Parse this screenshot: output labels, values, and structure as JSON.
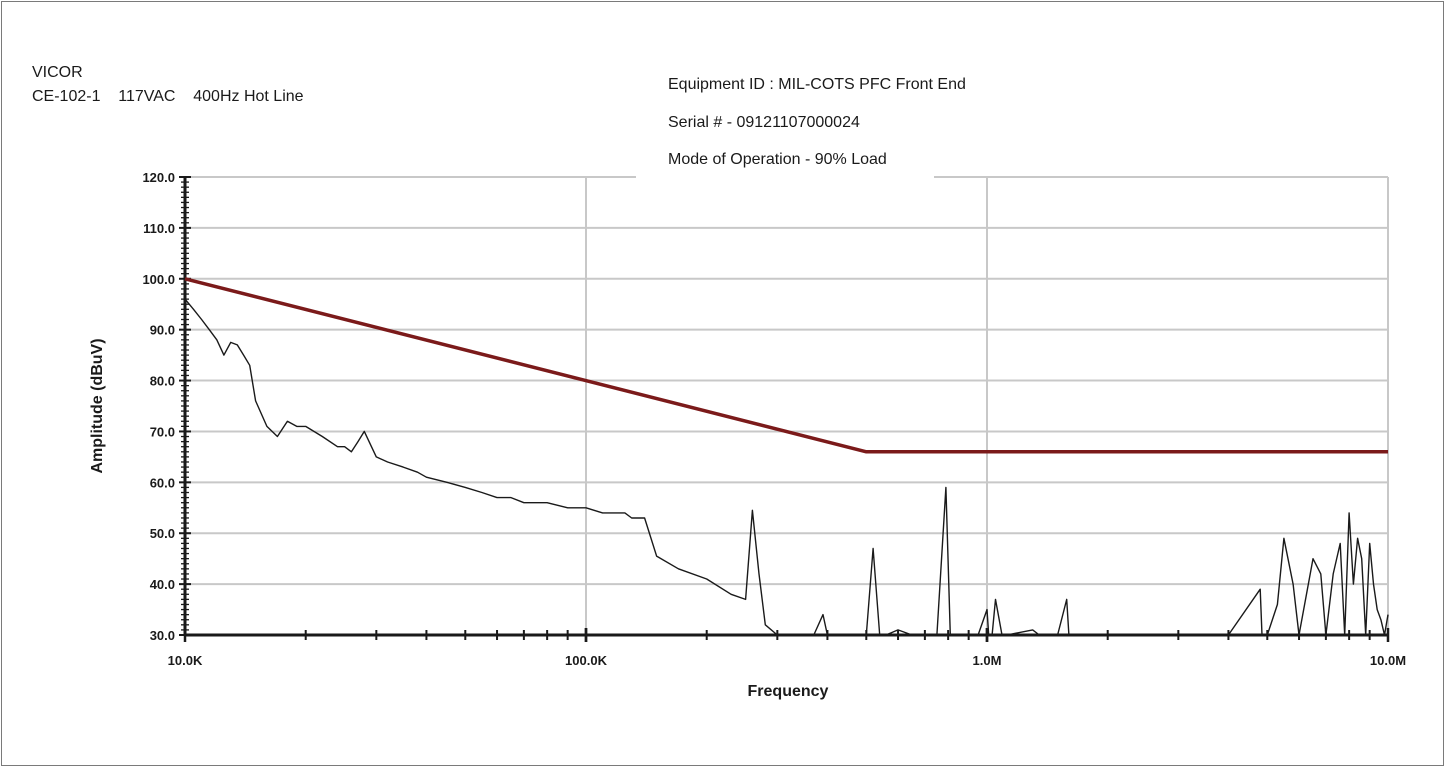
{
  "header": {
    "company": "VICOR",
    "test_line": "CE-102-1    117VAC    400Hz Hot Line",
    "equipment": "Equipment ID : MIL-COTS PFC Front End",
    "serial": "Serial # - 09121107000024",
    "mode": "Mode of Operation - 90% Load"
  },
  "chart_data": {
    "type": "line",
    "title": "",
    "xlabel": "Frequency",
    "ylabel": "Amplitude (dBuV)",
    "x_scale": "log",
    "xlim": [
      10000,
      10000000
    ],
    "ylim": [
      30,
      120
    ],
    "grid": true,
    "x_ticks": [
      10000,
      100000,
      1000000,
      10000000
    ],
    "x_tick_labels": [
      "10.0K",
      "100.0K",
      "1.0M",
      "10.0M"
    ],
    "y_ticks": [
      30,
      40,
      50,
      60,
      70,
      80,
      90,
      100,
      110,
      120
    ],
    "y_tick_labels": [
      "30.0",
      "40.0",
      "50.0",
      "60.0",
      "70.0",
      "80.0",
      "90.0",
      "100.0",
      "110.0",
      "120.0"
    ],
    "colors": {
      "limit": "#7b1a1a",
      "measurement": "#1a1a1a",
      "grid": "#c8c8c8"
    },
    "series": [
      {
        "role": "limit",
        "x": [
          10000,
          500000,
          10000000
        ],
        "y": [
          100,
          66,
          66
        ]
      },
      {
        "role": "measurement",
        "x": [
          10000,
          10500,
          11000,
          11500,
          12000,
          12500,
          13000,
          13500,
          14000,
          14500,
          15000,
          16000,
          17000,
          18000,
          19000,
          20000,
          22000,
          24000,
          25000,
          26000,
          27000,
          28000,
          30000,
          32000,
          35000,
          38000,
          40000,
          45000,
          50000,
          55000,
          60000,
          65000,
          70000,
          80000,
          90000,
          100000,
          110000,
          120000,
          125000,
          130000,
          140000,
          150000,
          170000,
          200000,
          230000,
          250000,
          260000,
          270000,
          280000,
          300000,
          330000,
          350000,
          370000,
          390000,
          400000,
          410000,
          420000,
          450000,
          500000,
          520000,
          540000,
          560000,
          600000,
          650000,
          700000,
          750000,
          790000,
          810000,
          830000,
          870000,
          950000,
          1000000,
          1010000,
          1030000,
          1050000,
          1090000,
          1100000,
          1120000,
          1300000,
          1350000,
          1380000,
          1500000,
          1580000,
          1600000,
          1620000,
          1800000,
          2000000,
          3000000,
          4000000,
          4800000,
          4850000,
          4900000,
          5000000,
          5300000,
          5500000,
          5800000,
          6000000,
          6500000,
          6800000,
          7000000,
          7300000,
          7600000,
          7800000,
          8000000,
          8200000,
          8400000,
          8600000,
          8800000,
          9000000,
          9200000,
          9400000,
          9600000,
          9800000,
          10000000
        ],
        "y": [
          96,
          94,
          92,
          90,
          88,
          85,
          87.5,
          87,
          85,
          83,
          76,
          71,
          69,
          72,
          71,
          71,
          69,
          67,
          67,
          66,
          68,
          70,
          65,
          64,
          63,
          62,
          61,
          60,
          59,
          58,
          57,
          57,
          56,
          56,
          55,
          55,
          54,
          54,
          54,
          53,
          53,
          45.5,
          43,
          41,
          38,
          37,
          54.5,
          42,
          32,
          30,
          30,
          30,
          30,
          34,
          30,
          30,
          30,
          30,
          30,
          47,
          30,
          30,
          31,
          30,
          30,
          30,
          59,
          30,
          30,
          30,
          30,
          35,
          30,
          30,
          37,
          30,
          30,
          30,
          31,
          30,
          30,
          30,
          37,
          30,
          30,
          30,
          30,
          30,
          30,
          39,
          30,
          30,
          30,
          36,
          49,
          40,
          30,
          45,
          42,
          30,
          42,
          48,
          30,
          54,
          40,
          49,
          45,
          30,
          48,
          40,
          35,
          33,
          30,
          34
        ]
      }
    ]
  }
}
